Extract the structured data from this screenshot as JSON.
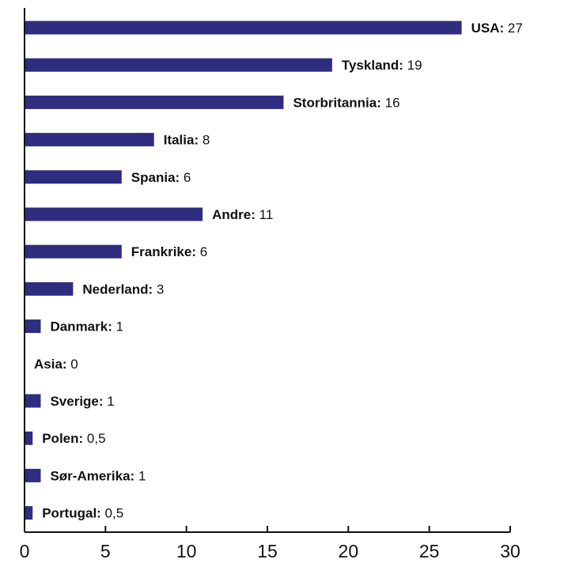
{
  "chart_data": {
    "type": "bar",
    "orientation": "horizontal",
    "categories": [
      "USA",
      "Tyskland",
      "Storbritannia",
      "Italia",
      "Spania",
      "Andre",
      "Frankrike",
      "Nederland",
      "Danmark",
      "Asia",
      "Sverige",
      "Polen",
      "Sør-Amerika",
      "Portugal"
    ],
    "values": [
      27,
      19,
      16,
      8,
      6,
      11,
      6,
      3,
      1,
      0,
      1,
      0.5,
      1,
      0.5
    ],
    "value_labels": [
      "27",
      "19",
      "16",
      "8",
      "6",
      "11",
      "6",
      "3",
      "1",
      "0",
      "1",
      "0,5",
      "1",
      "0,5"
    ],
    "xlim": [
      0,
      30
    ],
    "xticks": [
      0,
      5,
      10,
      15,
      20,
      25,
      30
    ],
    "title": "",
    "xlabel": "",
    "ylabel": "",
    "grid": false,
    "legend": "none",
    "bar_color": "#2e2d7f"
  }
}
